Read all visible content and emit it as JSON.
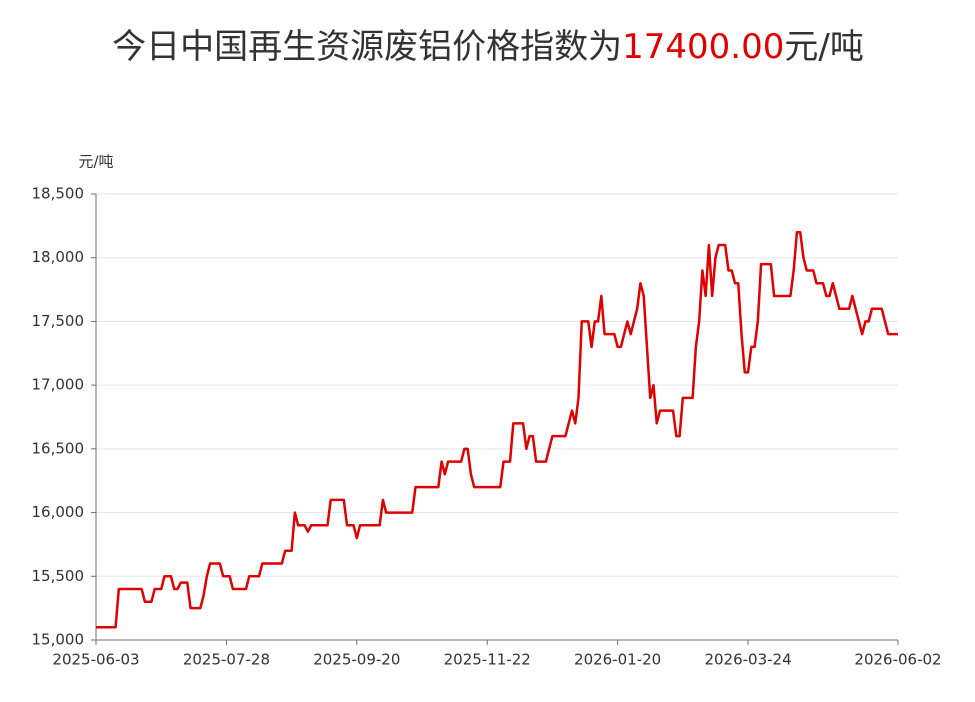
{
  "chart_data": {
    "type": "line",
    "title": [
      "今日中国再生资源废铝价格指数为",
      "17400.00",
      "元/吨"
    ],
    "y_label": "元/吨",
    "color": "#e10000",
    "grid": true,
    "ylim": [
      15000,
      18500
    ],
    "yticks": [
      {
        "value": 15000,
        "label": "15,000"
      },
      {
        "value": 15500,
        "label": "15,500"
      },
      {
        "value": 16000,
        "label": "16,000"
      },
      {
        "value": 16500,
        "label": "16,500"
      },
      {
        "value": 17000,
        "label": "17,000"
      },
      {
        "value": 17500,
        "label": "17,500"
      },
      {
        "value": 18000,
        "label": "18,000"
      },
      {
        "value": 18500,
        "label": "18,500"
      }
    ],
    "categories": [
      "2025-06-03",
      null,
      null,
      null,
      null,
      null,
      null,
      null,
      null,
      null,
      null,
      null,
      null,
      null,
      null,
      null,
      null,
      null,
      null,
      null,
      null,
      null,
      null,
      null,
      null,
      null,
      null,
      null,
      null,
      null,
      null,
      null,
      null,
      null,
      null,
      null,
      null,
      null,
      null,
      null,
      "2025-07-28",
      null,
      null,
      null,
      null,
      null,
      null,
      null,
      null,
      null,
      null,
      null,
      null,
      null,
      null,
      null,
      null,
      null,
      null,
      null,
      null,
      null,
      null,
      null,
      null,
      null,
      null,
      null,
      null,
      null,
      null,
      null,
      null,
      null,
      null,
      null,
      null,
      null,
      null,
      null,
      "2025-09-20",
      null,
      null,
      null,
      null,
      null,
      null,
      null,
      null,
      null,
      null,
      null,
      null,
      null,
      null,
      null,
      null,
      null,
      null,
      null,
      null,
      null,
      null,
      null,
      null,
      null,
      null,
      null,
      null,
      null,
      null,
      null,
      null,
      null,
      null,
      null,
      null,
      null,
      null,
      null,
      "2025-11-22",
      null,
      null,
      null,
      null,
      null,
      null,
      null,
      null,
      null,
      null,
      null,
      null,
      null,
      null,
      null,
      null,
      null,
      null,
      null,
      null,
      null,
      null,
      null,
      null,
      null,
      null,
      null,
      null,
      null,
      null,
      null,
      null,
      null,
      null,
      null,
      null,
      null,
      null,
      null,
      "2026-01-20",
      null,
      null,
      null,
      null,
      null,
      null,
      null,
      null,
      null,
      null,
      null,
      null,
      null,
      null,
      null,
      null,
      null,
      null,
      null,
      null,
      null,
      null,
      null,
      null,
      null,
      null,
      null,
      null,
      null,
      null,
      null,
      null,
      null,
      null,
      null,
      null,
      null,
      null,
      null,
      "2026-03-24",
      null,
      null,
      null,
      null,
      null,
      null,
      null,
      null,
      null,
      null,
      null,
      null,
      null,
      null,
      null,
      null,
      null,
      null,
      null,
      null,
      null,
      null,
      null,
      null,
      null,
      null,
      null,
      null,
      null,
      null,
      null,
      null,
      null,
      null,
      null,
      null,
      null,
      null,
      null,
      null,
      null,
      null,
      null,
      null,
      null,
      "2026-06-02"
    ],
    "values": [
      15100,
      15100,
      15100,
      15100,
      15100,
      15100,
      15100,
      15400,
      15400,
      15400,
      15400,
      15400,
      15400,
      15400,
      15400,
      15300,
      15300,
      15300,
      15400,
      15400,
      15400,
      15500,
      15500,
      15500,
      15400,
      15400,
      15450,
      15450,
      15450,
      15250,
      15250,
      15250,
      15250,
      15350,
      15500,
      15600,
      15600,
      15600,
      15600,
      15500,
      15500,
      15500,
      15400,
      15400,
      15400,
      15400,
      15400,
      15500,
      15500,
      15500,
      15500,
      15600,
      15600,
      15600,
      15600,
      15600,
      15600,
      15600,
      15700,
      15700,
      15700,
      16000,
      15900,
      15900,
      15900,
      15850,
      15900,
      15900,
      15900,
      15900,
      15900,
      15900,
      16100,
      16100,
      16100,
      16100,
      16100,
      15900,
      15900,
      15900,
      15800,
      15900,
      15900,
      15900,
      15900,
      15900,
      15900,
      15900,
      16100,
      16000,
      16000,
      16000,
      16000,
      16000,
      16000,
      16000,
      16000,
      16000,
      16200,
      16200,
      16200,
      16200,
      16200,
      16200,
      16200,
      16200,
      16400,
      16300,
      16400,
      16400,
      16400,
      16400,
      16400,
      16500,
      16500,
      16300,
      16200,
      16200,
      16200,
      16200,
      16200,
      16200,
      16200,
      16200,
      16200,
      16400,
      16400,
      16400,
      16700,
      16700,
      16700,
      16700,
      16500,
      16600,
      16600,
      16400,
      16400,
      16400,
      16400,
      16500,
      16600,
      16600,
      16600,
      16600,
      16600,
      16700,
      16800,
      16700,
      16900,
      17500,
      17500,
      17500,
      17300,
      17500,
      17500,
      17700,
      17400,
      17400,
      17400,
      17400,
      17300,
      17300,
      17400,
      17500,
      17400,
      17500,
      17600,
      17800,
      17700,
      17300,
      16900,
      17000,
      16700,
      16800,
      16800,
      16800,
      16800,
      16800,
      16600,
      16600,
      16900,
      16900,
      16900,
      16900,
      17300,
      17500,
      17900,
      17700,
      18100,
      17700,
      18000,
      18100,
      18100,
      18100,
      17900,
      17900,
      17800,
      17800,
      17400,
      17100,
      17100,
      17300,
      17300,
      17500,
      17950,
      17950,
      17950,
      17950,
      17700,
      17700,
      17700,
      17700,
      17700,
      17700,
      17900,
      18200,
      18200,
      18000,
      17900,
      17900,
      17900,
      17800,
      17800,
      17800,
      17700,
      17700,
      17800,
      17700,
      17600,
      17600,
      17600,
      17600,
      17700,
      17600,
      17500,
      17400,
      17500,
      17500,
      17600,
      17600,
      17600,
      17600,
      17500,
      17400,
      17400,
      17400,
      17400
    ]
  }
}
